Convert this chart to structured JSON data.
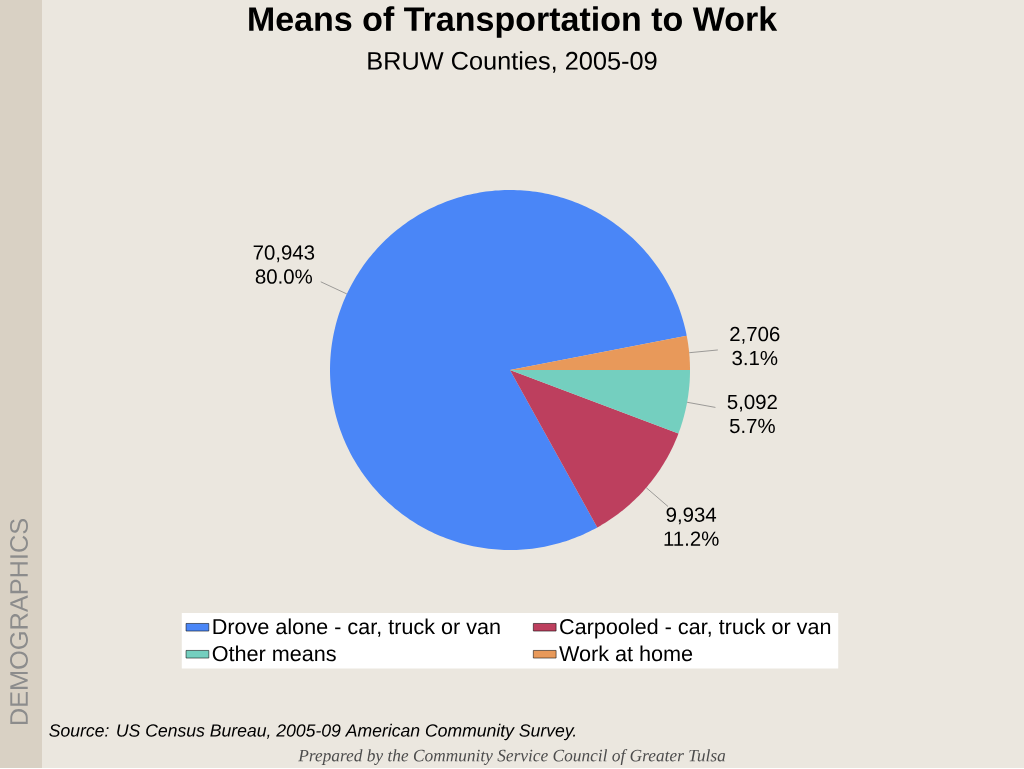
{
  "chart_data": {
    "type": "pie",
    "title": "Means of Transportation to Work",
    "subtitle": "BRUW Counties, 2005-09",
    "categories": [
      "Drove alone - car, truck or van",
      "Carpooled - car, truck or van",
      "Other means",
      "Work at home"
    ],
    "values": [
      70943,
      9934,
      5092,
      2706
    ],
    "colors": [
      "#4a86f7",
      "#bd3f5e",
      "#74cfbf",
      "#e8995a"
    ],
    "value_labels": [
      "70,943\n80.0%",
      "9,934\n11.2%",
      "5,092\n5.7%",
      "2,706\n3.1%"
    ],
    "legend": "bottom",
    "annotations": [
      "Source:  US Census Bureau, 2005-09 American Community Survey.",
      "Prepared by the Community Service Council of Greater Tulsa",
      "DEMOGRAPHICS"
    ]
  }
}
